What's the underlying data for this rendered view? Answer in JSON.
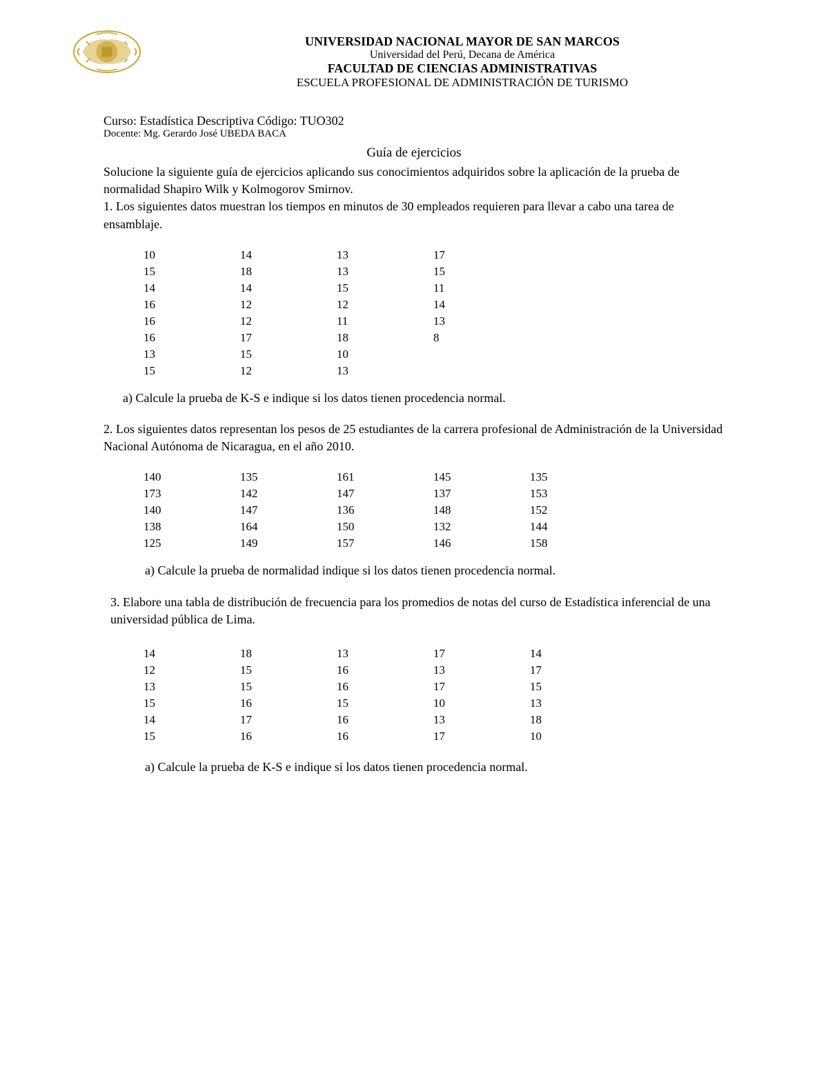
{
  "header": {
    "university_name": "UNIVERSIDAD NACIONAL MAYOR DE SAN MARCOS",
    "university_subtitle": "Universidad del Perú, Decana de América",
    "faculty": "FACULTAD DE CIENCIAS ADMINISTRATIVAS",
    "school": "ESCUELA PROFESIONAL DE ADMINISTRACIÓN DE TURISMO",
    "logo_colors": {
      "primary": "#c9a838",
      "accent": "#b8941f"
    }
  },
  "course": {
    "label": "Curso: Estadística Descriptiva Código: TUO302",
    "docente": "Docente: Mg. Gerardo José UBEDA BACA"
  },
  "guide": {
    "title": "Guía de ejercicios",
    "intro": "Solucione la siguiente guía de ejercicios aplicando sus conocimientos adquiridos sobre la aplicación de la prueba de normalidad Shapiro Wilk y Kolmogorov Smirnov."
  },
  "problems": {
    "p1": {
      "number": "1.",
      "text": "Los siguientes datos muestran los tiempos en minutos de 30 empleados requieren para llevar a cabo una tarea de ensamblaje.",
      "data": {
        "type": "table",
        "columns": 4,
        "rows": [
          [
            "10",
            "14",
            "13",
            "17"
          ],
          [
            "15",
            "18",
            "13",
            "15"
          ],
          [
            "14",
            "14",
            "15",
            "11"
          ],
          [
            "16",
            "12",
            "12",
            "14"
          ],
          [
            "16",
            "12",
            "11",
            "13"
          ],
          [
            "16",
            "17",
            "18",
            "8"
          ],
          [
            "13",
            "15",
            "10",
            ""
          ],
          [
            "15",
            "12",
            "13",
            ""
          ]
        ]
      },
      "sub_a": "a)   Calcule la prueba de K-S e indique si los datos tienen procedencia normal."
    },
    "p2": {
      "number": "2.",
      "text": "Los siguientes datos representan los pesos de 25 estudiantes de la carrera profesional de Administración de la Universidad Nacional Autónoma de Nicaragua, en el año 2010.",
      "data": {
        "type": "table",
        "columns": 5,
        "rows": [
          [
            "140",
            "135",
            "161",
            "145",
            "135"
          ],
          [
            "173",
            "142",
            "147",
            "137",
            "153"
          ],
          [
            "140",
            "147",
            "136",
            "148",
            "152"
          ],
          [
            "138",
            "164",
            "150",
            "132",
            "144"
          ],
          [
            "125",
            "149",
            "157",
            "146",
            "158"
          ]
        ]
      },
      "sub_a": "a)   Calcule la prueba de normalidad indique si los datos tienen procedencia normal."
    },
    "p3": {
      "number": "3.",
      "text": "Elabore una tabla de distribución de frecuencia para los promedios de notas del curso de Estadística inferencial de una universidad pública de Lima.",
      "data": {
        "type": "table",
        "columns": 5,
        "rows": [
          [
            "14",
            "18",
            "13",
            "17",
            "14"
          ],
          [
            "12",
            "15",
            "16",
            "13",
            "17"
          ],
          [
            "13",
            "15",
            "16",
            "17",
            "15"
          ],
          [
            "15",
            "16",
            "15",
            "10",
            "13"
          ],
          [
            "14",
            "17",
            "16",
            "13",
            "18"
          ],
          [
            "15",
            "16",
            "16",
            "17",
            "10"
          ]
        ]
      },
      "sub_a": "a)   Calcule la prueba de K-S e indique si los datos tienen procedencia normal."
    }
  },
  "styling": {
    "text_color": "#000000",
    "background_color": "#ffffff",
    "body_fontsize": 18,
    "table_fontsize": 17,
    "header_bold_fontsize": 18,
    "docente_fontsize": 15
  }
}
